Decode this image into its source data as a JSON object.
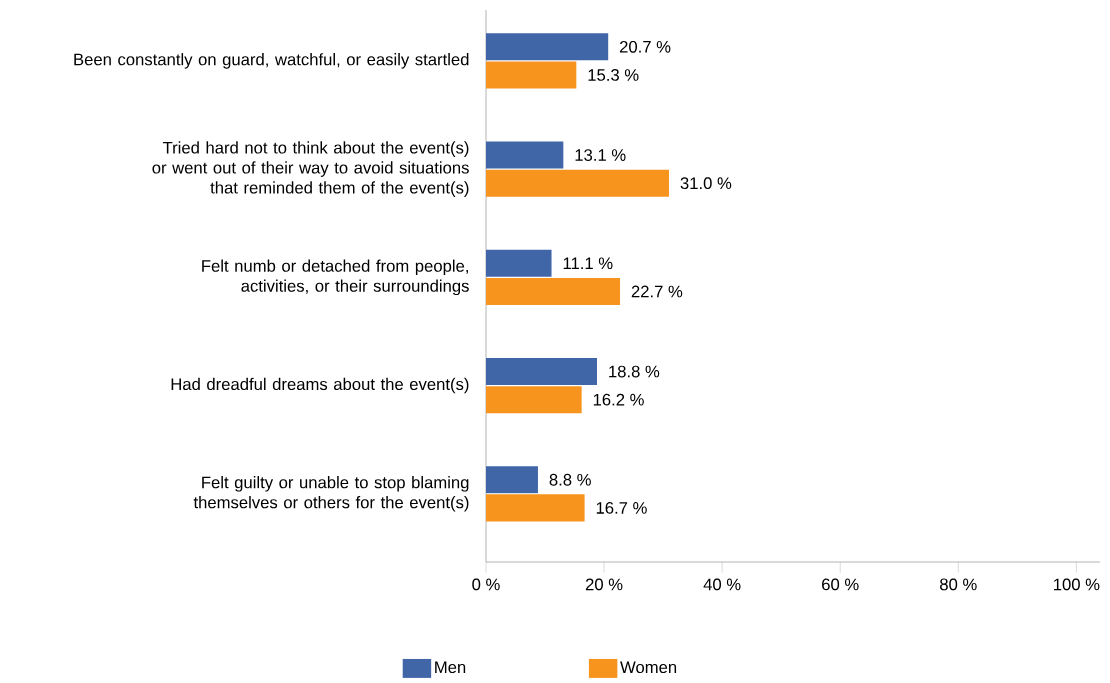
{
  "chart_data": {
    "type": "bar",
    "orientation": "horizontal",
    "categories": [
      "Been constantly on guard, watchful, or easily startled",
      "Tried hard not to think about the event(s) or went out of their way to avoid situations that reminded them of the event(s)",
      "Felt numb or detached from people, activities, or their surroundings",
      "Had dreadful dreams about the event(s)",
      "Felt guilty or unable to stop blaming themselves or others for the event(s)"
    ],
    "series": [
      {
        "name": "Men",
        "color": "#4166a8",
        "values": [
          20.7,
          13.1,
          11.1,
          18.8,
          8.8
        ],
        "value_labels": [
          "20.7 %",
          "13.1 %",
          "11.1 %",
          "18.8 %",
          "8.8 %"
        ]
      },
      {
        "name": "Women",
        "color": "#f7941d",
        "values": [
          15.3,
          31.0,
          22.7,
          16.2,
          16.7
        ],
        "value_labels": [
          "15.3 %",
          "31.0 %",
          "22.7 %",
          "16.2 %",
          "16.7 %"
        ]
      }
    ],
    "xlim": [
      0,
      104
    ],
    "xticks": [
      {
        "value": 0,
        "label": "0 %"
      },
      {
        "value": 20,
        "label": "20 %"
      },
      {
        "value": 40,
        "label": "40 %"
      },
      {
        "value": 60,
        "label": "60 %"
      },
      {
        "value": 80,
        "label": "80 %"
      },
      {
        "value": 100,
        "label": "100 %"
      }
    ],
    "legend": "bottom"
  }
}
